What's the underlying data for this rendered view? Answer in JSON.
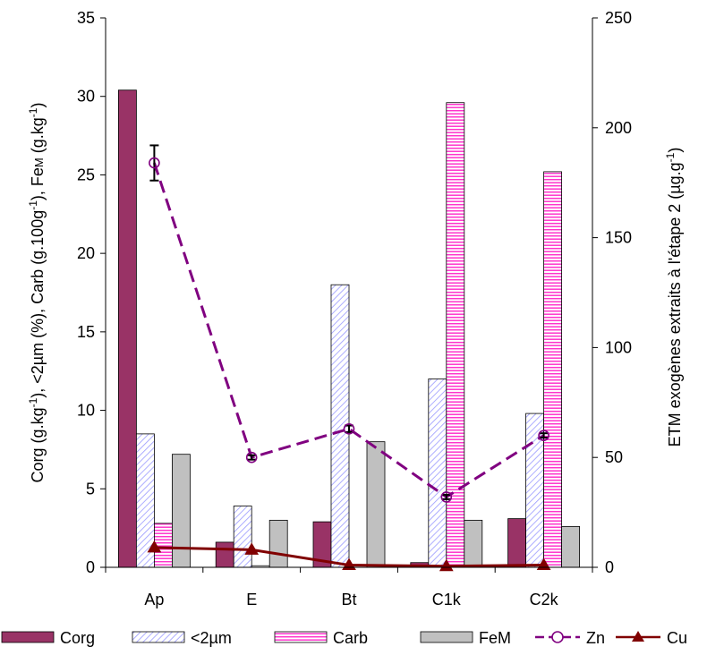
{
  "chart_data": {
    "type": "bar",
    "categories": [
      "Ap",
      "E",
      "Bt",
      "C1k",
      "C2k"
    ],
    "bar_series": [
      {
        "name": "Corg",
        "values": [
          30.4,
          1.6,
          2.9,
          0.3,
          3.1
        ],
        "color": "#993366",
        "pattern": "solid"
      },
      {
        "name": "<2µm",
        "values": [
          8.5,
          3.9,
          18.0,
          12.0,
          9.8
        ],
        "color": "#9999ff",
        "pattern": "diagonal-hatch"
      },
      {
        "name": "Carb",
        "values": [
          2.8,
          0.1,
          0.0,
          29.6,
          25.2
        ],
        "color": "#ff33cc",
        "pattern": "horizontal-lines"
      },
      {
        "name": "FeM",
        "values": [
          7.2,
          3.0,
          8.0,
          3.0,
          2.6
        ],
        "color": "#c0c0c0",
        "pattern": "solid"
      }
    ],
    "line_series": [
      {
        "name": "Zn",
        "values": [
          184,
          50,
          63,
          32,
          60
        ],
        "color": "#800080",
        "style": "dashed",
        "marker": "open-circle",
        "error": [
          8,
          1,
          1.5,
          1,
          1
        ]
      },
      {
        "name": "Cu",
        "values": [
          9,
          8,
          1,
          0.5,
          1
        ],
        "color": "#800000",
        "style": "solid",
        "marker": "filled-triangle"
      }
    ],
    "y_left": {
      "label": "Corg (g.kg-1), <2µm (%), Carb (g.100g-1), FeM (g.kg-1)",
      "lim": [
        0,
        35
      ],
      "ticks": [
        0,
        5,
        10,
        15,
        20,
        25,
        30,
        35
      ]
    },
    "y_right": {
      "label": "ETM exogènes extraits à l'étape 2 (µg.g-1)",
      "lim": [
        0,
        250
      ],
      "ticks": [
        0,
        50,
        100,
        150,
        200,
        250
      ]
    },
    "legend_position": "bottom",
    "grid": false
  },
  "axis_title_parts": {
    "left": [
      {
        "t": "Corg (g.kg"
      },
      {
        "t": "-1",
        "sup": true
      },
      {
        "t": "), <2µm (%), Carb (g.100g"
      },
      {
        "t": "-1",
        "sup": true
      },
      {
        "t": "), Fe"
      },
      {
        "t": "M",
        "small": true
      },
      {
        "t": " (g.kg"
      },
      {
        "t": "-1",
        "sup": true
      },
      {
        "t": ")"
      }
    ],
    "right": [
      {
        "t": "ETM exogènes extraits à l'étape 2 (µg.g"
      },
      {
        "t": "-1",
        "sup": true
      },
      {
        "t": ")"
      }
    ]
  }
}
